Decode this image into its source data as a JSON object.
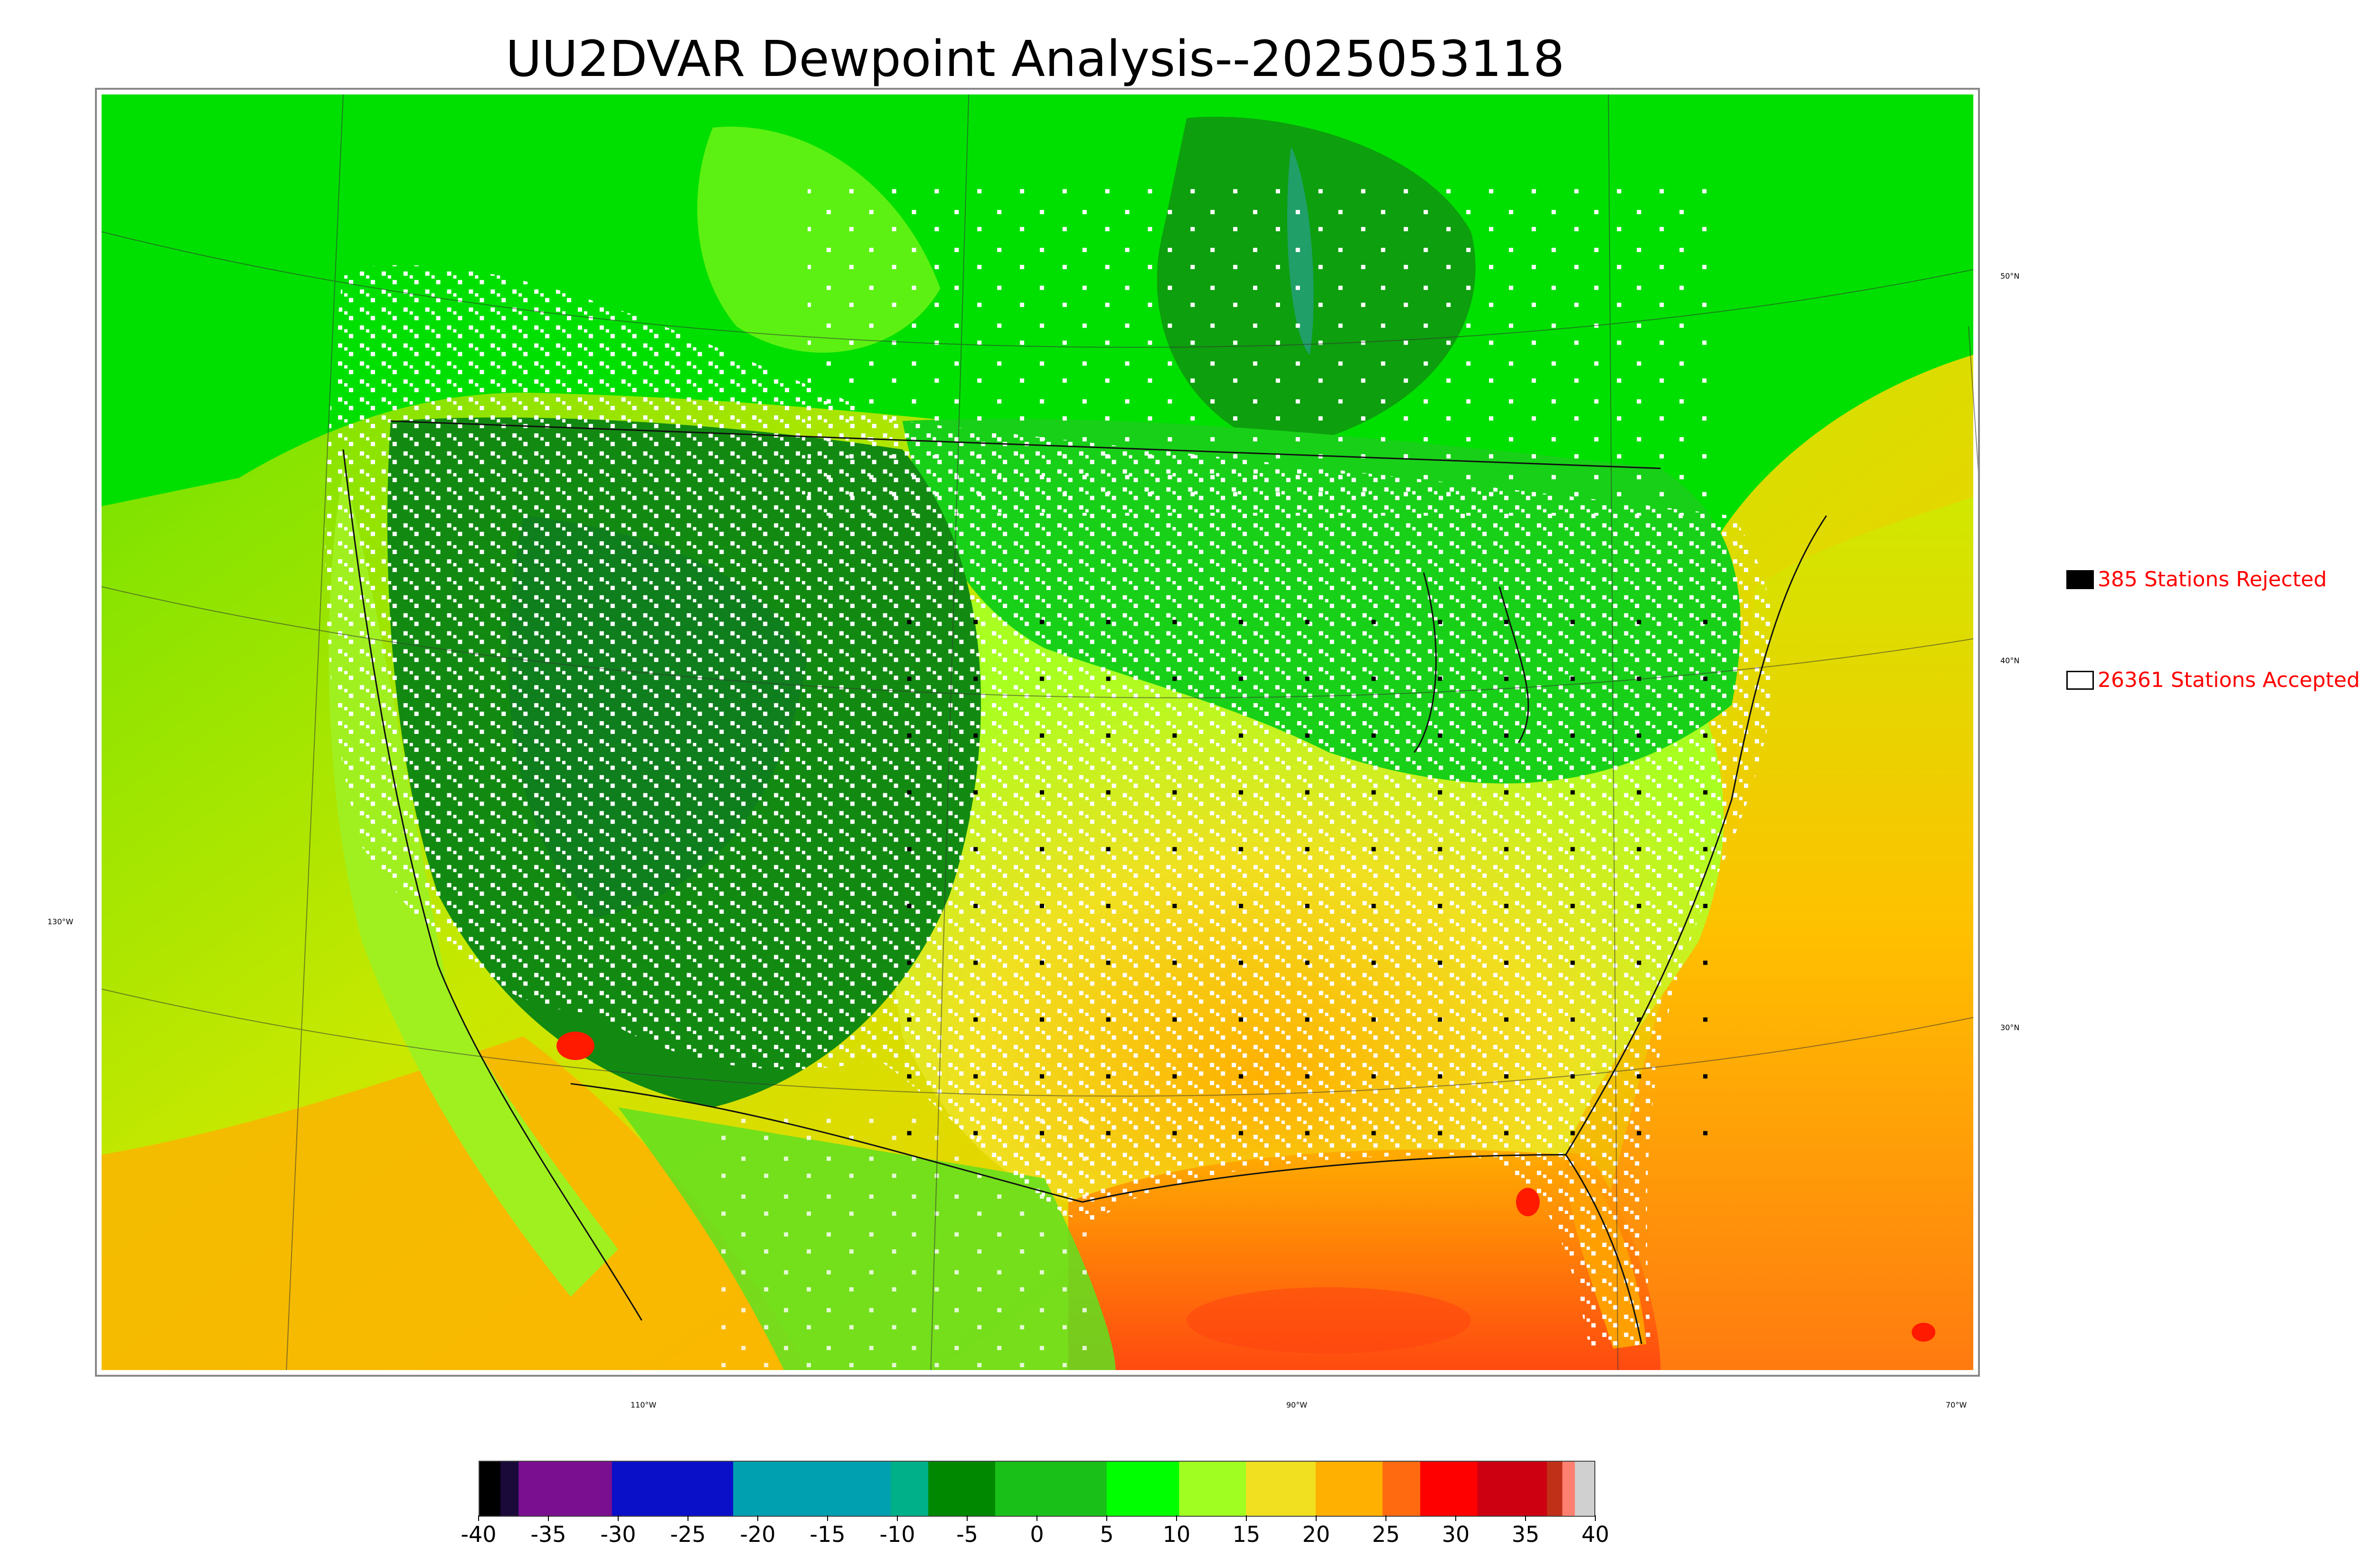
{
  "title": "UU2DVAR Dewpoint Analysis--2025053118",
  "legend": {
    "rejected": {
      "label": "385 Stations Rejected",
      "swatch_color": "#000000"
    },
    "accepted": {
      "label": "26361 Stations Accepted",
      "swatch_color": "#ffffff"
    }
  },
  "map_labels": {
    "latitudes": [
      "50°N",
      "40°N",
      "30°N"
    ],
    "longitudes": [
      "130°W",
      "110°W",
      "90°W",
      "70°W"
    ]
  },
  "colorbar": {
    "ticks": [
      "-40",
      "-35",
      "-30",
      "-25",
      "-20",
      "-15",
      "-10",
      "-5",
      "0",
      "5",
      "10",
      "15",
      "20",
      "25",
      "30",
      "35",
      "40"
    ],
    "range": [
      -40,
      40
    ],
    "segments": [
      {
        "from": -40,
        "to": -38.5,
        "color": "#000000"
      },
      {
        "from": -38.5,
        "to": -37.2,
        "color": "#1a0a3a"
      },
      {
        "from": -37.2,
        "to": -30.5,
        "color": "#7a0f8f"
      },
      {
        "from": -30.5,
        "to": -21.8,
        "color": "#0a10c8"
      },
      {
        "from": -21.8,
        "to": -10.5,
        "color": "#00a0b0"
      },
      {
        "from": -10.5,
        "to": -7.8,
        "color": "#00b088"
      },
      {
        "from": -7.8,
        "to": -3,
        "color": "#008800"
      },
      {
        "from": -3,
        "to": 5,
        "color": "#18c018"
      },
      {
        "from": 5,
        "to": 10.2,
        "color": "#00ff00"
      },
      {
        "from": 10.2,
        "to": 15,
        "color": "#a0ff20"
      },
      {
        "from": 15,
        "to": 20,
        "color": "#f0e020"
      },
      {
        "from": 20,
        "to": 24.8,
        "color": "#ffb000"
      },
      {
        "from": 24.8,
        "to": 27.5,
        "color": "#ff6a10"
      },
      {
        "from": 27.5,
        "to": 31.6,
        "color": "#ff0000"
      },
      {
        "from": 31.6,
        "to": 36.6,
        "color": "#cc0010"
      },
      {
        "from": 36.6,
        "to": 37.7,
        "color": "#c03018"
      },
      {
        "from": 37.7,
        "to": 38.6,
        "color": "#ff8070"
      },
      {
        "from": 38.6,
        "to": 40,
        "color": "#d0d0d0"
      }
    ]
  },
  "colors": {
    "ocean_west": "#c8e800",
    "ocean_gulf": "#ff8a10",
    "canada": "#00e000",
    "west_dry": "#128a12"
  }
}
